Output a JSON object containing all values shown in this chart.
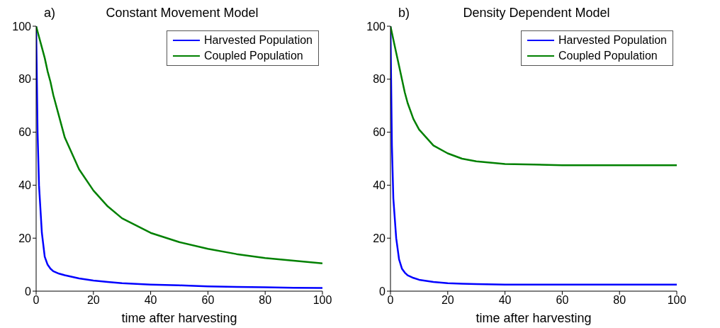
{
  "chart_data": [
    {
      "type": "line",
      "title": "Constant Movement Model",
      "xlabel": "time after harvesting",
      "annotations": [
        "a)"
      ],
      "x": [
        0,
        0.5,
        1,
        2,
        3,
        4,
        5,
        6,
        8,
        10,
        15,
        20,
        25,
        30,
        40,
        50,
        60,
        70,
        80,
        90,
        100
      ],
      "xlim": [
        0,
        100
      ],
      "xticks": [
        0,
        20,
        40,
        60,
        80,
        100
      ],
      "ylim": [
        0,
        100
      ],
      "yticks": [
        0,
        20,
        40,
        60,
        80,
        100
      ],
      "legend": "top right",
      "series": [
        {
          "name": "Harvested Population",
          "color": "#0000ff",
          "values": [
            100,
            60,
            40,
            22,
            13,
            10,
            8.5,
            7.5,
            6.6,
            6,
            4.8,
            4,
            3.5,
            3,
            2.5,
            2.2,
            1.8,
            1.6,
            1.5,
            1.3,
            1.2
          ]
        },
        {
          "name": "Coupled Population",
          "color": "#008000",
          "values": [
            100,
            98,
            96,
            92,
            88,
            83,
            79,
            74,
            66,
            58,
            46,
            38,
            32,
            27.5,
            22,
            18.5,
            16,
            14,
            12.5,
            11.5,
            10.5
          ]
        }
      ]
    },
    {
      "type": "line",
      "title": "Density Dependent Model",
      "xlabel": "time after harvesting",
      "annotations": [
        "b)"
      ],
      "x": [
        0,
        0.5,
        1,
        2,
        3,
        4,
        5,
        6,
        8,
        10,
        15,
        20,
        25,
        30,
        40,
        50,
        60,
        70,
        80,
        90,
        100
      ],
      "xlim": [
        0,
        100
      ],
      "xticks": [
        0,
        20,
        40,
        60,
        80,
        100
      ],
      "ylim": [
        0,
        100
      ],
      "yticks": [
        0,
        20,
        40,
        60,
        80,
        100
      ],
      "legend": "top right",
      "series": [
        {
          "name": "Harvested Population",
          "color": "#0000ff",
          "values": [
            100,
            55,
            35,
            20,
            12,
            8.5,
            7,
            6,
            5,
            4.3,
            3.5,
            3,
            2.8,
            2.7,
            2.5,
            2.5,
            2.5,
            2.5,
            2.5,
            2.5,
            2.5
          ]
        },
        {
          "name": "Coupled Population",
          "color": "#008000",
          "values": [
            100,
            97.5,
            95,
            90,
            85,
            80,
            75,
            71,
            65,
            61,
            55,
            52,
            50,
            49,
            48,
            47.8,
            47.5,
            47.5,
            47.5,
            47.5,
            47.5
          ]
        }
      ]
    }
  ]
}
